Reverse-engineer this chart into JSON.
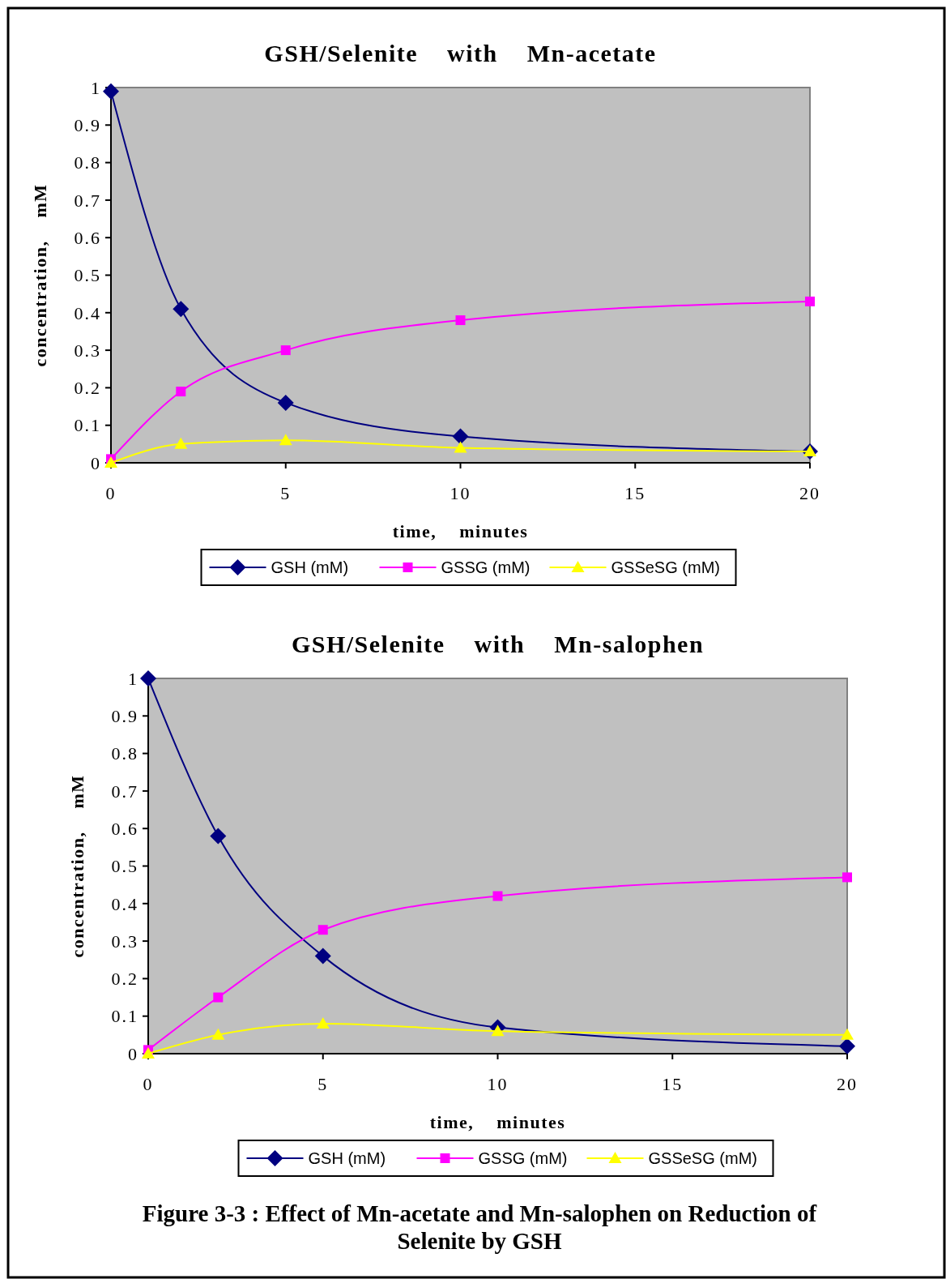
{
  "chart_data": [
    {
      "type": "line",
      "title": "GSH/Selenite    with    Mn-acetate",
      "xlabel": "time,    minutes",
      "ylabel": "concentration,    mM",
      "x": [
        0,
        2,
        5,
        10,
        20
      ],
      "xlim": [
        0,
        20
      ],
      "xticks": [
        0,
        5,
        10,
        15,
        20
      ],
      "ylim": [
        0,
        1
      ],
      "yticks": [
        0,
        0.1,
        0.2,
        0.3,
        0.4,
        0.5,
        0.6,
        0.7,
        0.8,
        0.9,
        1
      ],
      "legend": "bottom",
      "series": [
        {
          "name": "GSH (mM)",
          "color": "#000080",
          "marker": "diamond",
          "values": [
            0.99,
            0.41,
            0.16,
            0.07,
            0.03
          ]
        },
        {
          "name": "GSSG (mM)",
          "color": "#ff00ff",
          "marker": "square",
          "values": [
            0.01,
            0.19,
            0.3,
            0.38,
            0.43
          ]
        },
        {
          "name": "GSSeSG (mM)",
          "color": "#ffff00",
          "marker": "triangle",
          "values": [
            0,
            0.05,
            0.06,
            0.04,
            0.03
          ]
        }
      ]
    },
    {
      "type": "line",
      "title": "GSH/Selenite    with    Mn-salophen",
      "xlabel": "time,    minutes",
      "ylabel": "concentration,    mM",
      "x": [
        0,
        2,
        5,
        10,
        20
      ],
      "xlim": [
        0,
        20
      ],
      "xticks": [
        0,
        5,
        10,
        15,
        20
      ],
      "ylim": [
        0,
        1
      ],
      "yticks": [
        0,
        0.1,
        0.2,
        0.3,
        0.4,
        0.5,
        0.6,
        0.7,
        0.8,
        0.9,
        1
      ],
      "legend": "bottom",
      "annotations": [
        "Figure 3-3 : Effect of Mn-acetate and Mn-salophen on Reduction of Selenite by GSH"
      ],
      "series": [
        {
          "name": "GSH (mM)",
          "color": "#000080",
          "marker": "diamond",
          "values": [
            1,
            0.58,
            0.26,
            0.07,
            0.02
          ]
        },
        {
          "name": "GSSG (mM)",
          "color": "#ff00ff",
          "marker": "square",
          "values": [
            0.01,
            0.15,
            0.33,
            0.42,
            0.47
          ]
        },
        {
          "name": "GSSeSG (mM)",
          "color": "#ffff00",
          "marker": "triangle",
          "values": [
            0,
            0.05,
            0.08,
            0.06,
            0.05
          ]
        }
      ]
    }
  ]
}
